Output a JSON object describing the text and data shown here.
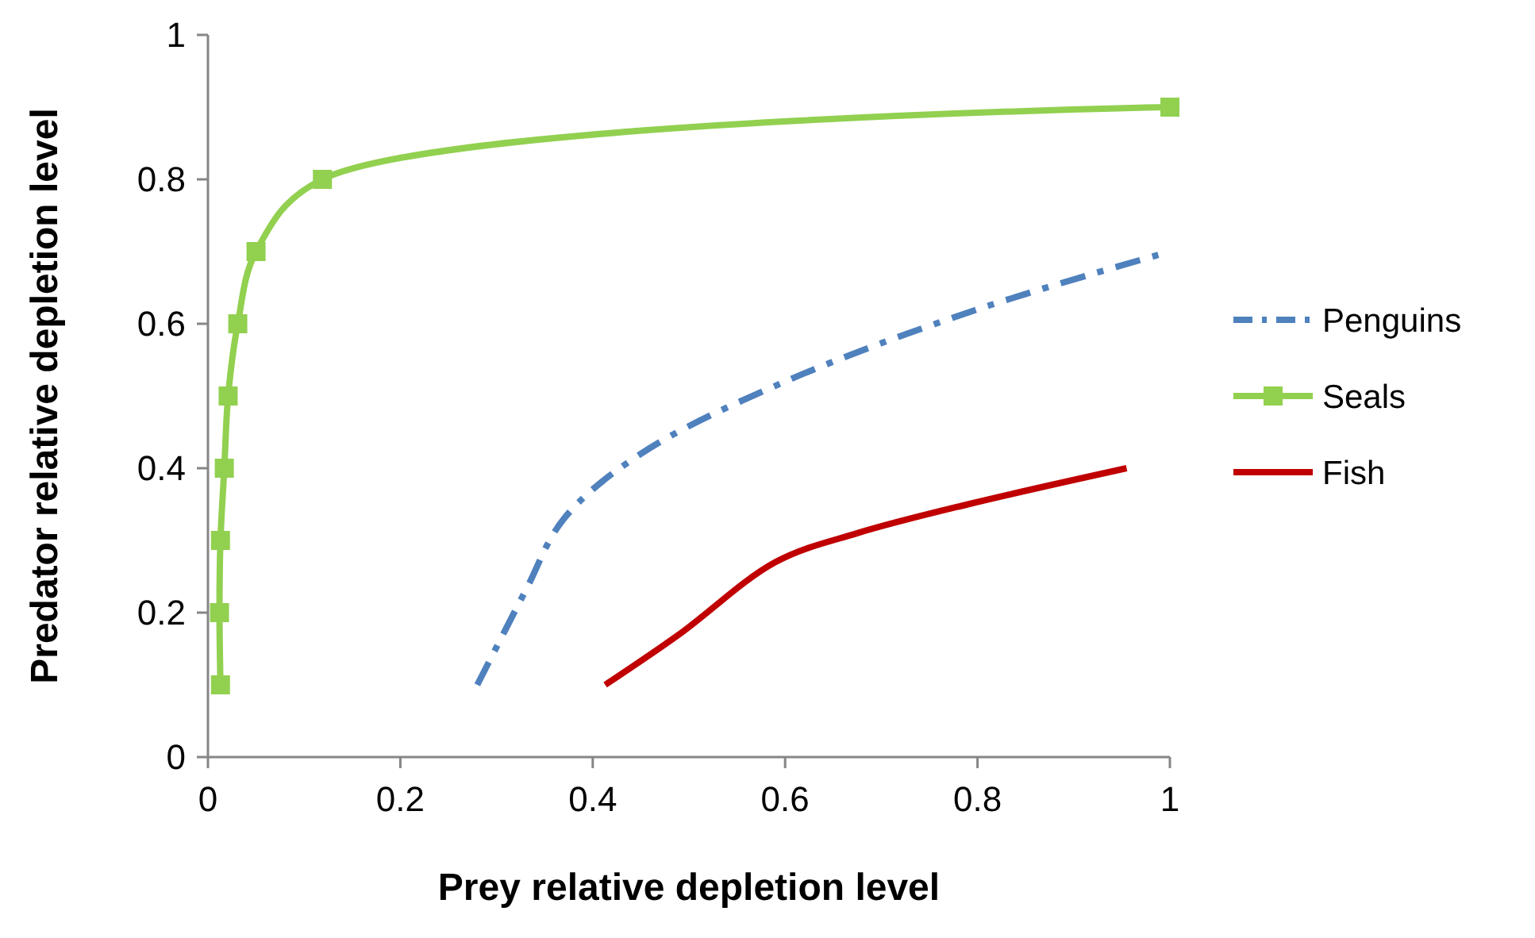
{
  "chart_data": {
    "type": "line",
    "xlabel": "Prey relative depletion level",
    "ylabel": "Predator relative depletion level",
    "xlim": [
      0,
      1
    ],
    "ylim": [
      0,
      1
    ],
    "xticks": [
      0,
      0.2,
      0.4,
      0.6,
      0.8,
      1
    ],
    "yticks": [
      0,
      0.2,
      0.4,
      0.6,
      0.8,
      1
    ],
    "grid": false,
    "legend": "right",
    "series": [
      {
        "name": "Penguins",
        "color": "#4f81bd",
        "line_style": "dashed",
        "marker": "none",
        "x": [
          0.28,
          0.33,
          0.37,
          0.45,
          0.6,
          0.8,
          1
        ],
        "values": [
          0.1,
          0.23,
          0.33,
          0.42,
          0.52,
          0.62,
          0.7
        ]
      },
      {
        "name": "Seals",
        "color": "#92d050",
        "line_style": "solid",
        "marker": "square",
        "x": [
          0.013,
          0.012,
          0.013,
          0.017,
          0.021,
          0.031,
          0.05,
          0.119,
          1
        ],
        "values": [
          0.1,
          0.2,
          0.3,
          0.4,
          0.5,
          0.6,
          0.7,
          0.8,
          0.9
        ]
      },
      {
        "name": "Fish",
        "color": "#c00000",
        "line_style": "solid",
        "marker": "none",
        "x": [
          0.413,
          0.49,
          0.59,
          0.675,
          0.79,
          0.955
        ],
        "values": [
          0.1,
          0.17,
          0.27,
          0.31,
          0.35,
          0.4
        ]
      }
    ]
  }
}
